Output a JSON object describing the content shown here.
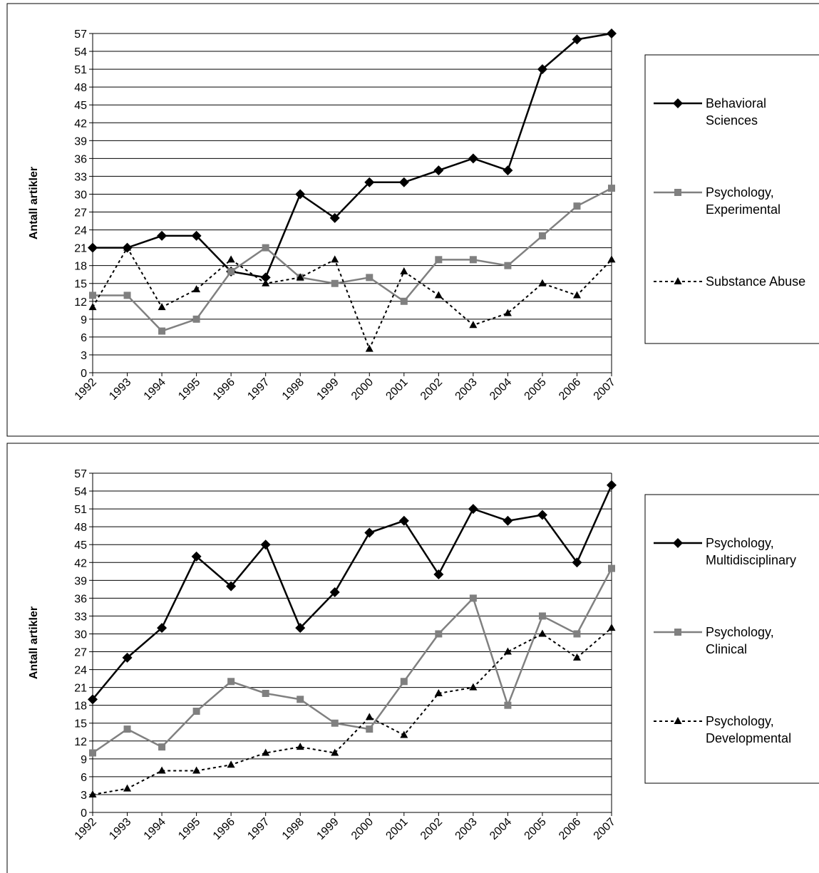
{
  "chart_data": [
    {
      "type": "line",
      "y_label": "Antall artikler",
      "categories": [
        "1992",
        "1993",
        "1994",
        "1995",
        "1996",
        "1997",
        "1998",
        "1999",
        "2000",
        "2001",
        "2002",
        "2003",
        "2004",
        "2005",
        "2006",
        "2007"
      ],
      "ylim": [
        0,
        57
      ],
      "yticks": [
        0,
        3,
        6,
        9,
        12,
        15,
        18,
        21,
        24,
        27,
        30,
        33,
        36,
        39,
        42,
        45,
        48,
        51,
        54,
        57
      ],
      "grid": true,
      "legend": "right",
      "series": [
        {
          "name": "Behavioral Sciences",
          "color": "#000000",
          "line_style": "solid",
          "marker": "diamond",
          "values": [
            21,
            21,
            23,
            23,
            17,
            16,
            30,
            26,
            32,
            32,
            34,
            36,
            34,
            51,
            56,
            57
          ]
        },
        {
          "name": "Psychology, Experimental",
          "color": "#808080",
          "line_style": "solid",
          "marker": "square",
          "values": [
            13,
            13,
            7,
            9,
            17,
            21,
            16,
            15,
            16,
            12,
            19,
            19,
            18,
            23,
            28,
            31
          ]
        },
        {
          "name": "Substance Abuse",
          "color": "#000000",
          "line_style": "dashed",
          "marker": "triangle",
          "values": [
            11,
            21,
            11,
            14,
            19,
            15,
            16,
            19,
            4,
            17,
            13,
            8,
            10,
            15,
            13,
            19
          ]
        }
      ]
    },
    {
      "type": "line",
      "y_label": "Antall artikler",
      "categories": [
        "1992",
        "1993",
        "1994",
        "1995",
        "1996",
        "1997",
        "1998",
        "1999",
        "2000",
        "2001",
        "2002",
        "2003",
        "2004",
        "2005",
        "2006",
        "2007"
      ],
      "ylim": [
        0,
        57
      ],
      "yticks": [
        0,
        3,
        6,
        9,
        12,
        15,
        18,
        21,
        24,
        27,
        30,
        33,
        36,
        39,
        42,
        45,
        48,
        51,
        54,
        57
      ],
      "grid": true,
      "legend": "right",
      "series": [
        {
          "name": "Psychology, Multidisciplinary",
          "color": "#000000",
          "line_style": "solid",
          "marker": "diamond",
          "values": [
            19,
            26,
            31,
            43,
            38,
            45,
            31,
            37,
            47,
            49,
            40,
            51,
            49,
            50,
            42,
            55
          ]
        },
        {
          "name": "Psychology, Clinical",
          "color": "#808080",
          "line_style": "solid",
          "marker": "square",
          "values": [
            10,
            14,
            11,
            17,
            22,
            20,
            19,
            15,
            14,
            22,
            30,
            36,
            18,
            33,
            30,
            41
          ]
        },
        {
          "name": "Psychology, Developmental",
          "color": "#000000",
          "line_style": "dashed",
          "marker": "triangle",
          "values": [
            3,
            4,
            7,
            7,
            8,
            10,
            11,
            10,
            16,
            13,
            20,
            21,
            27,
            30,
            26,
            31
          ]
        }
      ]
    }
  ]
}
